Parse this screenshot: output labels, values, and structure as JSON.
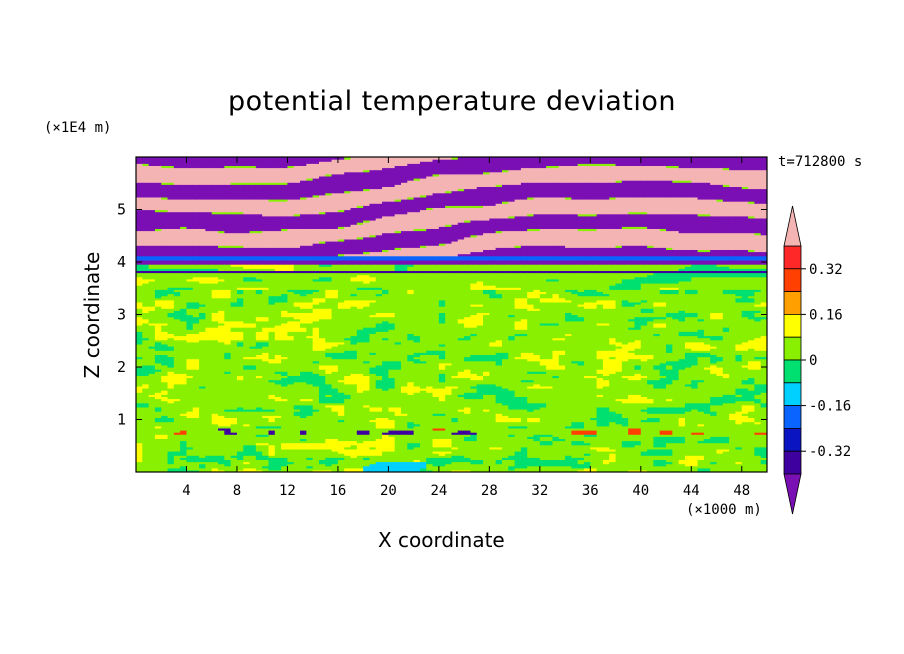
{
  "chart_data": {
    "type": "heatmap",
    "title": "potential temperature deviation",
    "xlabel": "X coordinate",
    "ylabel": "Z coordinate",
    "x_unit_label": "(×1000 m)",
    "y_unit_label": "(×1E4 m)",
    "time_label": "t=712800 s",
    "xlim": [
      0,
      50
    ],
    "ylim": [
      0,
      6
    ],
    "x_ticks": [
      "4",
      "8",
      "12",
      "16",
      "20",
      "24",
      "28",
      "32",
      "36",
      "40",
      "44",
      "48"
    ],
    "y_ticks": [
      "1",
      "2",
      "3",
      "4",
      "5"
    ],
    "colorbar": {
      "tick_labels": [
        "0.32",
        "0.16",
        "0",
        "-0.16",
        "-0.32"
      ],
      "tick_values": [
        0.32,
        0.16,
        0,
        -0.16,
        -0.32
      ],
      "levels": [
        -0.4,
        -0.32,
        -0.24,
        -0.16,
        -0.08,
        0,
        0.08,
        0.16,
        0.24,
        0.32,
        0.4
      ],
      "colors": [
        "#7a0fb4",
        "#3f00a0",
        "#0a14c0",
        "#0a64ff",
        "#00d0ff",
        "#00e070",
        "#88f000",
        "#ffff00",
        "#ffa000",
        "#ff4000",
        "#ff2828",
        "#f5b4b4"
      ],
      "extend": "both"
    },
    "bands": [
      {
        "z_min": 0.0,
        "z_max": 0.8,
        "description": "near-surface region mostly 0 to 0.08 with patches of -0.08 and small positive spots",
        "dominant": 0.04
      },
      {
        "z_min": 0.8,
        "z_max": 3.5,
        "description": "mostly 0 to 0.08 with irregular -0.08 to 0 patches",
        "dominant": 0.04
      },
      {
        "z_min": 3.5,
        "z_max": 3.9,
        "description": "transition layer near zero",
        "dominant": 0.0
      },
      {
        "z_min": 3.9,
        "z_max": 4.1,
        "description": "thin layers of strong negative then positive deviation",
        "dominant": -0.3
      },
      {
        "z_min": 4.1,
        "z_max": 6.0,
        "description": "alternating stripes of < -0.4 (purple) and > 0.4 (pink)",
        "dominant": 0.0
      }
    ]
  }
}
